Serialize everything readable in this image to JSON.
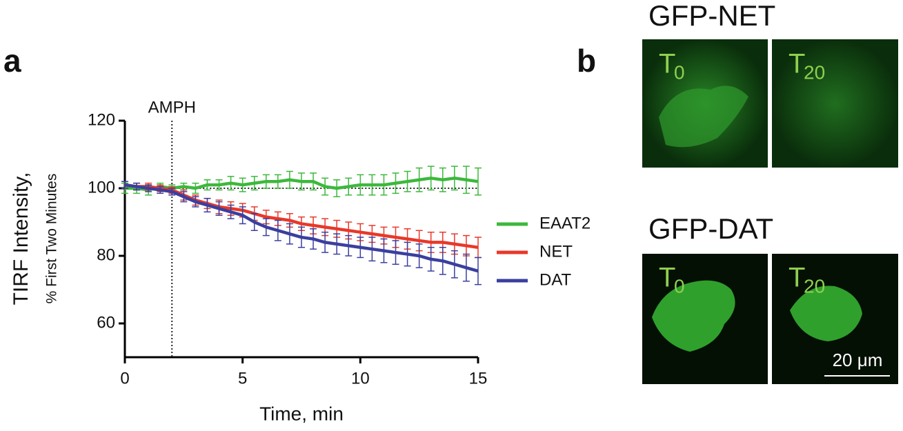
{
  "panel_a": {
    "label": "a"
  },
  "chart_data": {
    "type": "line",
    "xlabel": "Time, min",
    "ylabel": "TIRF Intensity,",
    "ylabel_sub": "% First Two Minutes",
    "annotation": {
      "text": "AMPH",
      "x": 2
    },
    "reference_line": 100,
    "xlim": [
      0,
      15
    ],
    "xticks": [
      0,
      5,
      10,
      15
    ],
    "ylim": [
      50,
      120
    ],
    "yticks": [
      60,
      80,
      100,
      120
    ],
    "legend": "right",
    "x": [
      0,
      0.5,
      1,
      1.5,
      2,
      2.5,
      3,
      3.5,
      4,
      4.5,
      5,
      5.5,
      6,
      6.5,
      7,
      7.5,
      8,
      8.5,
      9,
      9.5,
      10,
      10.5,
      11,
      11.5,
      12,
      12.5,
      13,
      13.5,
      14,
      14.5,
      15
    ],
    "series": [
      {
        "name": "EAAT2",
        "color": "#3cb83c",
        "values": [
          100,
          100,
          99.5,
          100.5,
          100,
          100.5,
          100,
          101,
          101,
          101.5,
          101,
          101.5,
          102,
          102,
          102.5,
          102,
          102,
          100.5,
          100,
          100.5,
          101,
          101,
          101,
          101.5,
          102,
          102.5,
          103,
          102.5,
          103,
          102.5,
          102
        ],
        "errors": [
          1.5,
          1.5,
          1.5,
          1,
          1,
          1,
          1.5,
          1.5,
          1.5,
          2,
          2,
          2,
          2,
          2,
          2.5,
          2.5,
          2.5,
          2.5,
          2.5,
          2.5,
          3,
          3,
          3,
          3,
          3,
          3.5,
          3.5,
          3.5,
          3.5,
          4,
          4
        ]
      },
      {
        "name": "NET",
        "color": "#e8382a",
        "values": [
          101,
          100.5,
          100.5,
          100,
          99.5,
          98,
          96.5,
          95.5,
          94.5,
          94,
          93.5,
          92.5,
          91.5,
          91,
          90.5,
          89.5,
          89,
          88.5,
          88,
          87.5,
          87,
          86.5,
          86,
          85.5,
          85,
          84.5,
          84,
          84,
          83.5,
          83,
          82.5
        ],
        "errors": [
          1,
          1,
          1,
          1,
          1,
          1.5,
          1.5,
          1.5,
          2,
          2,
          2,
          2,
          2,
          2,
          2,
          2,
          2.5,
          2.5,
          2.5,
          2.5,
          2.5,
          2.5,
          2.5,
          3,
          3,
          3,
          3,
          3,
          3,
          3,
          3
        ]
      },
      {
        "name": "DAT",
        "color": "#3a3f9e",
        "values": [
          101,
          100.5,
          100,
          99.5,
          99,
          97.5,
          96,
          95,
          94,
          93,
          92,
          90,
          88.5,
          87.5,
          86.5,
          85.5,
          85,
          84,
          83.5,
          83,
          82.5,
          82,
          81.5,
          81,
          80.5,
          80,
          79,
          78.5,
          77.5,
          76.5,
          75.5
        ],
        "errors": [
          1,
          1,
          1,
          1,
          1,
          1.5,
          1.5,
          2,
          2,
          2,
          2.5,
          2.5,
          2.5,
          3,
          3,
          3,
          3,
          3,
          3,
          3,
          3,
          3.5,
          3.5,
          3.5,
          3.5,
          3.5,
          3.5,
          4,
          4,
          4,
          4
        ]
      }
    ]
  },
  "panel_b": {
    "label": "b",
    "rows": [
      {
        "title": "GFP-NET",
        "frames": [
          {
            "label": "T",
            "sub": "0"
          },
          {
            "label": "T",
            "sub": "20"
          }
        ]
      },
      {
        "title": "GFP-DAT",
        "frames": [
          {
            "label": "T",
            "sub": "0"
          },
          {
            "label": "T",
            "sub": "20"
          }
        ]
      }
    ],
    "scale_bar": "20 μm"
  }
}
